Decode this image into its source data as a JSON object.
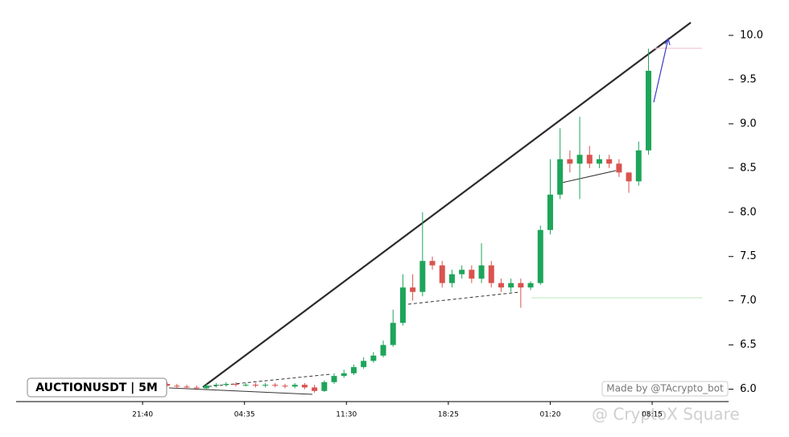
{
  "chart_data": {
    "type": "candlestick",
    "title": "AUCTIONUSDT | 5M",
    "credit": "Made by @TAcrypto_bot",
    "watermark": "@ CryptoX Square",
    "x": [
      0,
      8,
      16,
      24,
      32,
      40,
      48,
      56,
      64,
      72,
      80,
      88,
      96,
      104,
      112,
      120,
      128,
      136,
      144,
      152,
      160,
      168,
      176,
      184,
      192,
      200,
      208,
      216,
      224,
      232,
      240,
      248,
      256,
      264,
      272,
      280,
      288,
      296,
      304,
      312,
      320,
      328,
      336,
      344,
      352,
      360,
      368,
      376,
      384,
      392
    ],
    "open": [
      6.06,
      6.04,
      6.03,
      6.02,
      6.01,
      6.04,
      6.05,
      6.06,
      6.05,
      6.05,
      6.04,
      6.05,
      6.04,
      6.03,
      6.05,
      6.02,
      5.98,
      6.08,
      6.15,
      6.18,
      6.25,
      6.32,
      6.38,
      6.5,
      6.75,
      7.15,
      7.1,
      7.45,
      7.4,
      7.2,
      7.3,
      7.35,
      7.25,
      7.4,
      7.2,
      7.15,
      7.2,
      7.15,
      7.2,
      7.8,
      8.2,
      8.6,
      8.55,
      8.65,
      8.55,
      8.6,
      8.55,
      8.45,
      8.35,
      8.7
    ],
    "high": [
      6.08,
      6.06,
      6.05,
      6.04,
      6.06,
      6.07,
      6.08,
      6.08,
      6.07,
      6.07,
      6.07,
      6.07,
      6.06,
      6.07,
      6.07,
      6.05,
      6.1,
      6.18,
      6.22,
      6.28,
      6.36,
      6.42,
      6.55,
      6.9,
      7.3,
      7.3,
      8.0,
      7.5,
      7.45,
      7.35,
      7.4,
      7.4,
      7.65,
      7.45,
      7.25,
      7.25,
      7.25,
      7.22,
      7.85,
      8.6,
      8.95,
      8.7,
      9.08,
      8.75,
      8.65,
      8.65,
      8.6,
      8.45,
      8.8,
      9.85
    ],
    "low": [
      6.03,
      6.01,
      6.0,
      5.99,
      6.0,
      6.02,
      6.03,
      6.03,
      6.03,
      6.02,
      6.02,
      6.02,
      6.01,
      6.01,
      6.0,
      5.96,
      5.97,
      6.06,
      6.13,
      6.16,
      6.23,
      6.3,
      6.36,
      6.48,
      6.72,
      7.0,
      7.05,
      7.35,
      7.15,
      7.15,
      7.25,
      7.2,
      7.2,
      7.15,
      7.1,
      7.1,
      6.92,
      7.12,
      7.18,
      7.75,
      8.15,
      8.45,
      8.15,
      8.5,
      8.5,
      8.5,
      8.4,
      8.22,
      8.3,
      8.65
    ],
    "close": [
      6.04,
      6.03,
      6.02,
      6.01,
      6.04,
      6.05,
      6.06,
      6.05,
      6.05,
      6.04,
      6.05,
      6.04,
      6.03,
      6.05,
      6.02,
      5.98,
      6.08,
      6.15,
      6.18,
      6.25,
      6.32,
      6.38,
      6.5,
      6.75,
      7.15,
      7.1,
      7.45,
      7.4,
      7.2,
      7.3,
      7.35,
      7.25,
      7.4,
      7.2,
      7.15,
      7.2,
      7.15,
      7.2,
      7.8,
      8.2,
      8.6,
      8.55,
      8.65,
      8.55,
      8.6,
      8.55,
      8.45,
      8.35,
      8.7,
      9.6
    ],
    "up_color": "#1ea55a",
    "down_color": "#d9534f",
    "xlim": [
      -123,
      433
    ],
    "xticks": [
      {
        "value": -20,
        "label": "21:40"
      },
      {
        "value": 63,
        "label": "04:35"
      },
      {
        "value": 146,
        "label": "11:30"
      },
      {
        "value": 229,
        "label": "18:25"
      },
      {
        "value": 312,
        "label": "01:20"
      },
      {
        "value": 395,
        "label": "08:15"
      }
    ],
    "ylim": [
      5.86,
      10.4
    ],
    "yticks": [
      {
        "value": 6,
        "label": "6.0"
      },
      6.5,
      {
        "value": 7,
        "label": "7.0"
      },
      7.5,
      {
        "value": 8,
        "label": "8.0"
      },
      8.5,
      {
        "value": 9,
        "label": "9.0"
      },
      9.5,
      {
        "value": 10,
        "label": "10.0"
      }
    ]
  }
}
